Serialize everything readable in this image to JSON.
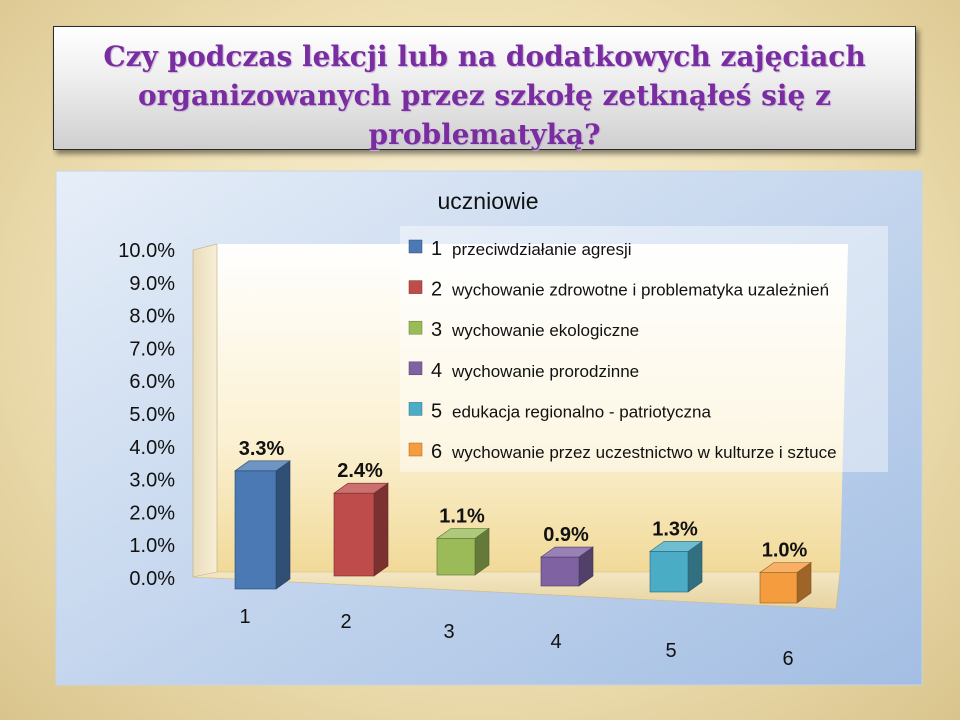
{
  "title": "Czy podczas lekcji lub na dodatkowych zajęciach organizowanych przez szkołę zetknąłeś się z problematyką?",
  "chart_data": {
    "type": "bar",
    "title": "uczniowie",
    "categories": [
      "1",
      "2",
      "3",
      "4",
      "5",
      "6"
    ],
    "values": [
      3.3,
      2.4,
      1.1,
      0.9,
      1.3,
      1.0
    ],
    "value_labels": [
      "3.3%",
      "2.4%",
      "1.1%",
      "0.9%",
      "1.3%",
      "1.0%"
    ],
    "colors": [
      "#4a79b4",
      "#bd4c4a",
      "#9bbb59",
      "#7e62a1",
      "#4bacc6",
      "#f59c3e"
    ],
    "ylim": [
      0,
      10
    ],
    "yticks": [
      "0.0%",
      "1.0%",
      "2.0%",
      "3.0%",
      "4.0%",
      "5.0%",
      "6.0%",
      "7.0%",
      "8.0%",
      "9.0%",
      "10.0%"
    ],
    "xlabel": "",
    "ylabel": "",
    "grid": false,
    "legend_position": "top-right",
    "legend": [
      {
        "key": "1",
        "label": "przeciwdziałanie agresji"
      },
      {
        "key": "2",
        "label": "wychowanie zdrowotne i problematyka uzależnień"
      },
      {
        "key": "3",
        "label": "wychowanie ekologiczne"
      },
      {
        "key": "4",
        "label": "wychowanie prorodzinne"
      },
      {
        "key": "5",
        "label": "edukacja regionalno - patriotyczna"
      },
      {
        "key": "6",
        "label": "wychowanie przez uczestnictwo w kulturze i sztuce"
      }
    ]
  }
}
